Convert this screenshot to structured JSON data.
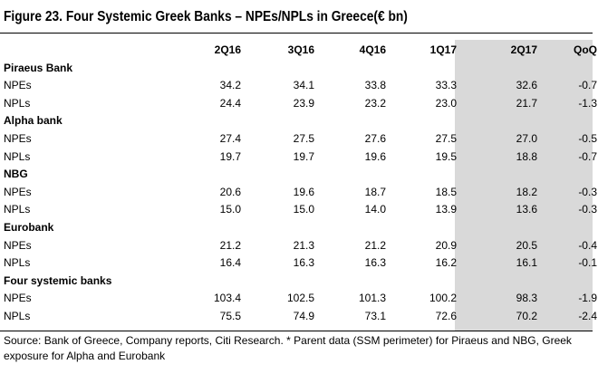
{
  "title": "Figure 23. Four Systemic Greek Banks – NPEs/NPLs in Greece(€ bn)",
  "columns": [
    "2Q16",
    "3Q16",
    "4Q16",
    "1Q17",
    "2Q17",
    "QoQ"
  ],
  "highlight_color": "#d9d9d9",
  "groups": [
    {
      "name": "Piraeus Bank",
      "rows": [
        {
          "label": "NPEs",
          "values": [
            "34.2",
            "34.1",
            "33.8",
            "33.3",
            "32.6",
            "-0.7"
          ]
        },
        {
          "label": "NPLs",
          "values": [
            "24.4",
            "23.9",
            "23.2",
            "23.0",
            "21.7",
            "-1.3"
          ]
        }
      ]
    },
    {
      "name": "Alpha bank",
      "rows": [
        {
          "label": "NPEs",
          "values": [
            "27.4",
            "27.5",
            "27.6",
            "27.5",
            "27.0",
            "-0.5"
          ]
        },
        {
          "label": "NPLs",
          "values": [
            "19.7",
            "19.7",
            "19.6",
            "19.5",
            "18.8",
            "-0.7"
          ]
        }
      ]
    },
    {
      "name": "NBG",
      "rows": [
        {
          "label": "NPEs",
          "values": [
            "20.6",
            "19.6",
            "18.7",
            "18.5",
            "18.2",
            "-0.3"
          ]
        },
        {
          "label": "NPLs",
          "values": [
            "15.0",
            "15.0",
            "14.0",
            "13.9",
            "13.6",
            "-0.3"
          ]
        }
      ]
    },
    {
      "name": "Eurobank",
      "rows": [
        {
          "label": "NPEs",
          "values": [
            "21.2",
            "21.3",
            "21.2",
            "20.9",
            "20.5",
            "-0.4"
          ]
        },
        {
          "label": "NPLs",
          "values": [
            "16.4",
            "16.3",
            "16.3",
            "16.2",
            "16.1",
            "-0.1"
          ]
        }
      ]
    },
    {
      "name": "Four systemic banks",
      "rows": [
        {
          "label": "NPEs",
          "values": [
            "103.4",
            "102.5",
            "101.3",
            "100.2",
            "98.3",
            "-1.9"
          ]
        },
        {
          "label": "NPLs",
          "values": [
            "75.5",
            "74.9",
            "73.1",
            "72.6",
            "70.2",
            "-2.4"
          ]
        }
      ]
    }
  ],
  "source": "Source: Bank of Greece, Company reports, Citi Research. * Parent data (SSM perimeter) for Piraeus and NBG, Greek exposure for Alpha and Eurobank"
}
